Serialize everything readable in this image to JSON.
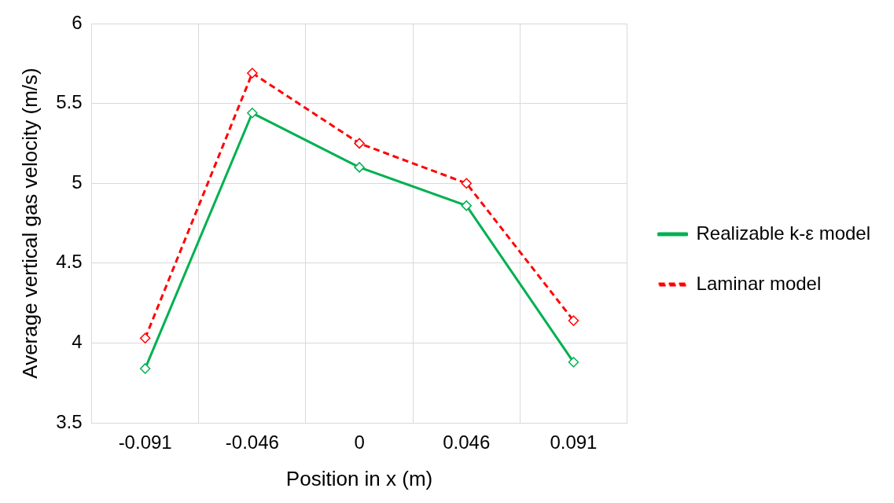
{
  "chart_data": {
    "type": "line",
    "xlabel": "Position in x (m)",
    "ylabel": "Average vertical gas velocity (m/s)",
    "categories": [
      "-0.091",
      "-0.046",
      "0",
      "0.046",
      "0.091"
    ],
    "series": [
      {
        "name": "Realizable k-ε model",
        "color": "#00b050",
        "line_style": "solid",
        "values": [
          3.84,
          5.44,
          5.1,
          4.86,
          3.88
        ]
      },
      {
        "name": "Laminar model",
        "color": "#ff0000",
        "line_style": "dashed",
        "values": [
          4.03,
          5.69,
          5.25,
          5.0,
          4.14
        ]
      }
    ],
    "ylim": [
      3.5,
      6
    ],
    "yticks": [
      3.5,
      4,
      4.5,
      5,
      5.5,
      6
    ],
    "grid": true,
    "legend": "right",
    "marker": "diamond"
  }
}
